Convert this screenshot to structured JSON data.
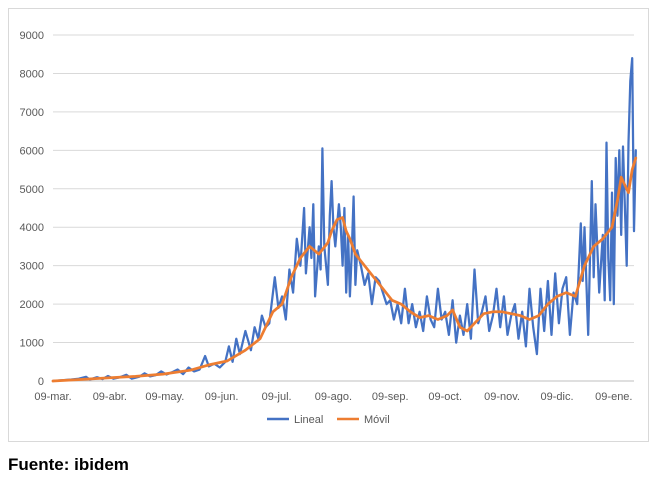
{
  "chart_data": {
    "type": "line",
    "title": "",
    "xlabel": "",
    "ylabel": "",
    "ylim": [
      0,
      9000
    ],
    "y_ticks": [
      0,
      1000,
      2000,
      3000,
      4000,
      5000,
      6000,
      7000,
      8000,
      9000
    ],
    "x_tick_labels": [
      "09-mar.",
      "09-abr.",
      "09-may.",
      "09-jun.",
      "09-jul.",
      "09-ago.",
      "09-sep.",
      "09-oct.",
      "09-nov.",
      "09-dic.",
      "09-ene."
    ],
    "x_tick_days": [
      0,
      31,
      61,
      92,
      122,
      153,
      184,
      214,
      245,
      275,
      306
    ],
    "x_max_day": 317,
    "grid": "horizontal",
    "legend_position": "bottom",
    "series": [
      {
        "name": "Lineal",
        "color": "#4472C4",
        "points": [
          [
            0,
            0
          ],
          [
            5,
            20
          ],
          [
            10,
            40
          ],
          [
            14,
            60
          ],
          [
            18,
            110
          ],
          [
            20,
            40
          ],
          [
            24,
            100
          ],
          [
            27,
            50
          ],
          [
            30,
            130
          ],
          [
            33,
            60
          ],
          [
            36,
            90
          ],
          [
            40,
            160
          ],
          [
            43,
            60
          ],
          [
            47,
            110
          ],
          [
            50,
            200
          ],
          [
            53,
            120
          ],
          [
            56,
            150
          ],
          [
            59,
            250
          ],
          [
            62,
            170
          ],
          [
            65,
            230
          ],
          [
            68,
            300
          ],
          [
            71,
            180
          ],
          [
            74,
            350
          ],
          [
            77,
            250
          ],
          [
            80,
            300
          ],
          [
            83,
            650
          ],
          [
            85,
            380
          ],
          [
            88,
            450
          ],
          [
            91,
            350
          ],
          [
            94,
            500
          ],
          [
            96,
            900
          ],
          [
            98,
            500
          ],
          [
            100,
            1100
          ],
          [
            102,
            700
          ],
          [
            105,
            1300
          ],
          [
            108,
            800
          ],
          [
            110,
            1400
          ],
          [
            112,
            1100
          ],
          [
            114,
            1700
          ],
          [
            116,
            1400
          ],
          [
            118,
            1500
          ],
          [
            121,
            2700
          ],
          [
            123,
            1900
          ],
          [
            125,
            2200
          ],
          [
            127,
            1600
          ],
          [
            129,
            2900
          ],
          [
            131,
            2300
          ],
          [
            133,
            3700
          ],
          [
            135,
            3000
          ],
          [
            137,
            4500
          ],
          [
            138,
            2800
          ],
          [
            140,
            4000
          ],
          [
            141,
            3200
          ],
          [
            142,
            4600
          ],
          [
            143,
            2200
          ],
          [
            145,
            3500
          ],
          [
            146,
            2900
          ],
          [
            147,
            6050
          ],
          [
            148,
            3500
          ],
          [
            150,
            2500
          ],
          [
            151,
            4300
          ],
          [
            152,
            5200
          ],
          [
            153,
            4000
          ],
          [
            154,
            3500
          ],
          [
            156,
            4600
          ],
          [
            157,
            4000
          ],
          [
            158,
            3000
          ],
          [
            159,
            4500
          ],
          [
            160,
            2300
          ],
          [
            161,
            3800
          ],
          [
            162,
            2200
          ],
          [
            163,
            3300
          ],
          [
            164,
            4800
          ],
          [
            165,
            2500
          ],
          [
            166,
            3400
          ],
          [
            168,
            3000
          ],
          [
            170,
            2500
          ],
          [
            172,
            2800
          ],
          [
            174,
            2000
          ],
          [
            176,
            2700
          ],
          [
            178,
            2600
          ],
          [
            180,
            2300
          ],
          [
            182,
            2000
          ],
          [
            184,
            2100
          ],
          [
            186,
            1600
          ],
          [
            188,
            2000
          ],
          [
            190,
            1500
          ],
          [
            192,
            2400
          ],
          [
            194,
            1500
          ],
          [
            196,
            2000
          ],
          [
            198,
            1400
          ],
          [
            200,
            1800
          ],
          [
            202,
            1300
          ],
          [
            204,
            2200
          ],
          [
            206,
            1600
          ],
          [
            208,
            1400
          ],
          [
            210,
            2400
          ],
          [
            212,
            1600
          ],
          [
            214,
            1800
          ],
          [
            216,
            1200
          ],
          [
            218,
            2100
          ],
          [
            220,
            1000
          ],
          [
            222,
            1700
          ],
          [
            224,
            1200
          ],
          [
            226,
            2000
          ],
          [
            228,
            1100
          ],
          [
            230,
            2900
          ],
          [
            232,
            1500
          ],
          [
            234,
            1800
          ],
          [
            236,
            2200
          ],
          [
            238,
            1300
          ],
          [
            240,
            1700
          ],
          [
            242,
            2400
          ],
          [
            244,
            1400
          ],
          [
            246,
            2200
          ],
          [
            248,
            1200
          ],
          [
            250,
            1700
          ],
          [
            252,
            2000
          ],
          [
            254,
            1100
          ],
          [
            256,
            1800
          ],
          [
            258,
            900
          ],
          [
            260,
            2400
          ],
          [
            262,
            1400
          ],
          [
            264,
            700
          ],
          [
            266,
            2400
          ],
          [
            268,
            1300
          ],
          [
            270,
            2600
          ],
          [
            272,
            1200
          ],
          [
            274,
            2800
          ],
          [
            276,
            1500
          ],
          [
            278,
            2400
          ],
          [
            280,
            2700
          ],
          [
            282,
            1200
          ],
          [
            284,
            2300
          ],
          [
            286,
            2000
          ],
          [
            288,
            4100
          ],
          [
            289,
            2600
          ],
          [
            290,
            4000
          ],
          [
            292,
            1200
          ],
          [
            294,
            5200
          ],
          [
            295,
            2700
          ],
          [
            296,
            4600
          ],
          [
            298,
            2300
          ],
          [
            300,
            3800
          ],
          [
            301,
            2100
          ],
          [
            302,
            6200
          ],
          [
            303,
            3200
          ],
          [
            304,
            2100
          ],
          [
            305,
            4900
          ],
          [
            306,
            2000
          ],
          [
            307,
            5800
          ],
          [
            308,
            4300
          ],
          [
            309,
            6000
          ],
          [
            310,
            3800
          ],
          [
            311,
            6100
          ],
          [
            312,
            4600
          ],
          [
            313,
            3000
          ],
          [
            314,
            6200
          ],
          [
            315,
            7800
          ],
          [
            316,
            8400
          ],
          [
            317,
            3900
          ],
          [
            318,
            6000
          ]
        ]
      },
      {
        "name": "Móvil",
        "color": "#ED7D31",
        "points": [
          [
            0,
            0
          ],
          [
            15,
            40
          ],
          [
            30,
            80
          ],
          [
            45,
            120
          ],
          [
            60,
            180
          ],
          [
            75,
            280
          ],
          [
            85,
            420
          ],
          [
            95,
            520
          ],
          [
            105,
            800
          ],
          [
            113,
            1100
          ],
          [
            120,
            1800
          ],
          [
            125,
            2000
          ],
          [
            130,
            2700
          ],
          [
            135,
            3200
          ],
          [
            140,
            3500
          ],
          [
            145,
            3300
          ],
          [
            150,
            3600
          ],
          [
            152,
            3900
          ],
          [
            155,
            4200
          ],
          [
            158,
            4250
          ],
          [
            160,
            3900
          ],
          [
            162,
            3700
          ],
          [
            165,
            3300
          ],
          [
            170,
            3000
          ],
          [
            175,
            2700
          ],
          [
            180,
            2400
          ],
          [
            185,
            2100
          ],
          [
            190,
            2000
          ],
          [
            195,
            1800
          ],
          [
            200,
            1650
          ],
          [
            205,
            1700
          ],
          [
            210,
            1600
          ],
          [
            215,
            1700
          ],
          [
            218,
            1850
          ],
          [
            222,
            1400
          ],
          [
            226,
            1300
          ],
          [
            230,
            1500
          ],
          [
            235,
            1750
          ],
          [
            240,
            1800
          ],
          [
            245,
            1800
          ],
          [
            250,
            1750
          ],
          [
            255,
            1700
          ],
          [
            260,
            1600
          ],
          [
            265,
            1700
          ],
          [
            270,
            2000
          ],
          [
            275,
            2200
          ],
          [
            280,
            2300
          ],
          [
            285,
            2200
          ],
          [
            290,
            3000
          ],
          [
            295,
            3500
          ],
          [
            300,
            3700
          ],
          [
            305,
            4000
          ],
          [
            308,
            4700
          ],
          [
            310,
            5300
          ],
          [
            312,
            5100
          ],
          [
            314,
            4900
          ],
          [
            316,
            5500
          ],
          [
            318,
            5800
          ]
        ]
      }
    ]
  },
  "footer": {
    "source": "Fuente: ibidem"
  }
}
